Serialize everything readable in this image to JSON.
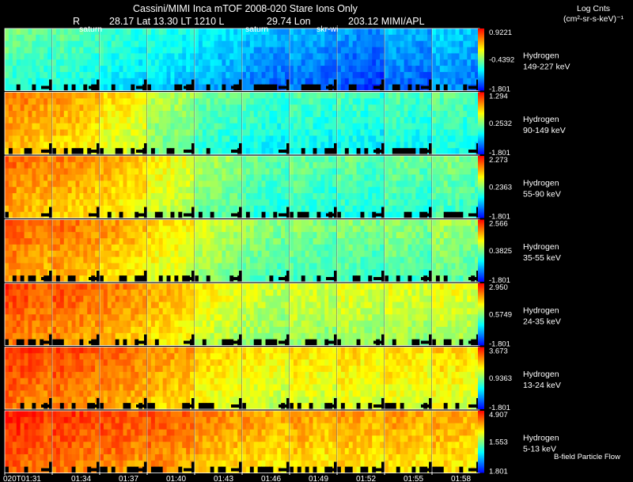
{
  "header": {
    "line1": "Cassini/MIMI Inca mTOF  2008-020   Stare   Ions Only",
    "r_label": "R",
    "line2": "28.17 Lat 13.30 LT 1210 L",
    "lon": "29.74 Lon",
    "line2_end": "203.12  MIMI/APL",
    "markers": [
      "saturn",
      "saturn",
      "skr-wi"
    ]
  },
  "units": {
    "title": "Log Cnts",
    "unit": "(cm²-sr-s-keV)⁻¹"
  },
  "chart_data": {
    "type": "heatmap",
    "x_ticks": [
      "020T01:31",
      "01:34",
      "01:37",
      "01:40",
      "01:43",
      "01:46",
      "01:49",
      "01:52",
      "01:55",
      "01:58"
    ],
    "footer_note": "B-field Particle Flow",
    "colors": [
      "#0000ff",
      "#00ffff",
      "#ffff00",
      "#ff0000"
    ],
    "panels": [
      {
        "species": "Hydrogen",
        "energy": "149-227 keV",
        "max": "0.9221",
        "mid": "-0.4392",
        "min": "-1.801",
        "levels": [
          0.42,
          0.4,
          0.35,
          0.32,
          0.26,
          0.2,
          0.18,
          0.14,
          0.18,
          0.22
        ]
      },
      {
        "species": "Hydrogen",
        "energy": "90-149 keV",
        "max": "1.294",
        "mid": "0.2532",
        "min": "-1.801",
        "levels": [
          0.78,
          0.74,
          0.65,
          0.52,
          0.42,
          0.38,
          0.38,
          0.37,
          0.38,
          0.4
        ]
      },
      {
        "species": "Hydrogen",
        "energy": "55-90 keV",
        "max": "2.273",
        "mid": "0.2363",
        "min": "-1.801",
        "levels": [
          0.8,
          0.77,
          0.72,
          0.62,
          0.5,
          0.42,
          0.42,
          0.41,
          0.43,
          0.45
        ]
      },
      {
        "species": "Hydrogen",
        "energy": "35-55 keV",
        "max": "2.566",
        "mid": "0.3825",
        "min": "-1.801",
        "levels": [
          0.82,
          0.8,
          0.74,
          0.66,
          0.55,
          0.48,
          0.46,
          0.46,
          0.47,
          0.5
        ]
      },
      {
        "species": "Hydrogen",
        "energy": "24-35 keV",
        "max": "2.950",
        "mid": "0.5749",
        "min": "-1.801",
        "levels": [
          0.86,
          0.84,
          0.79,
          0.72,
          0.62,
          0.56,
          0.57,
          0.58,
          0.58,
          0.6
        ]
      },
      {
        "species": "Hydrogen",
        "energy": "13-24 keV",
        "max": "3.673",
        "mid": "0.9363",
        "min": "-1.801",
        "levels": [
          0.88,
          0.86,
          0.82,
          0.76,
          0.68,
          0.64,
          0.65,
          0.66,
          0.66,
          0.67
        ]
      },
      {
        "species": "Hydrogen",
        "energy": "5-13 keV",
        "max": "4.907",
        "mid": "1.553",
        "min": "1.801",
        "levels": [
          0.9,
          0.88,
          0.86,
          0.84,
          0.78,
          0.74,
          0.74,
          0.74,
          0.74,
          0.74
        ]
      }
    ]
  }
}
